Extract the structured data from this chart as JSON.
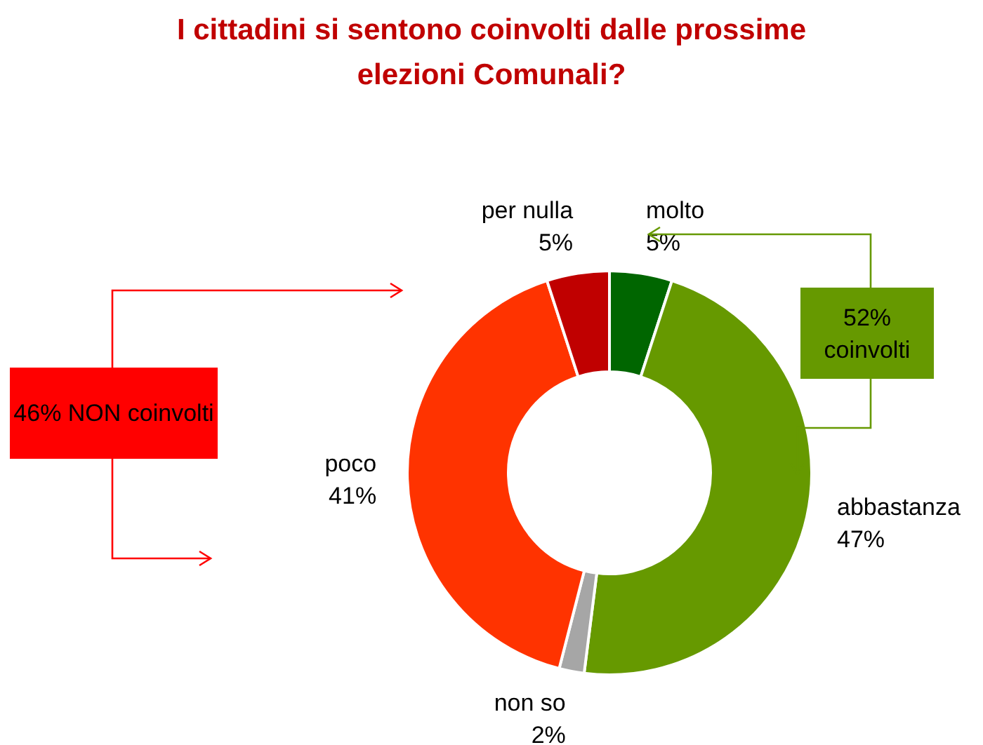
{
  "chart_data": {
    "type": "donut",
    "title": "I cittadini si sentono coinvolti dalle prossime elezioni Comunali?",
    "categories": [
      "molto",
      "abbastanza",
      "non so",
      "poco",
      "per nulla"
    ],
    "values": [
      5,
      47,
      2,
      41,
      5
    ],
    "value_labels": [
      "5%",
      "47%",
      "2%",
      "41%",
      "5%"
    ],
    "colors": [
      "#006600",
      "#669900",
      "#a6a6a6",
      "#ff3300",
      "#c00000"
    ],
    "annotations": [
      "52% coinvolti",
      "46% NON coinvolti"
    ]
  }
}
